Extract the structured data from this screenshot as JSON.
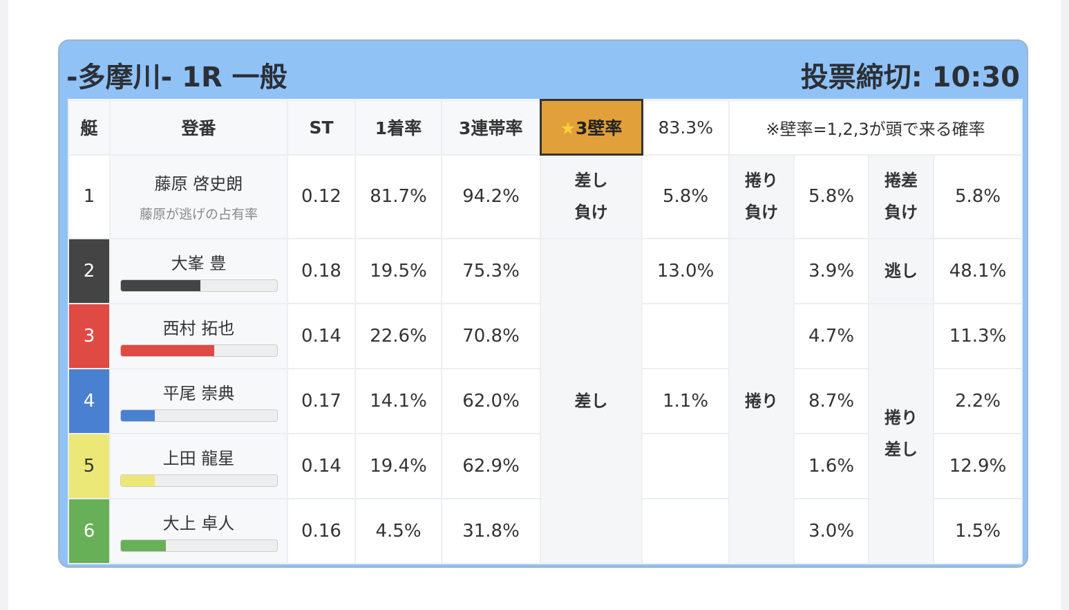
{
  "header": {
    "title": "-多摩川- 1R 一般",
    "deadline": "投票締切: 10:30"
  },
  "columns": {
    "boat": "艇",
    "name": "登番",
    "st": "ST",
    "win": "1着率",
    "top3": "3連帯率",
    "wall": "★3壁率",
    "wall_value": "83.3%",
    "note": "※壁率=1,2,3が頭で来る確率"
  },
  "rows": [
    {
      "boat": "1",
      "name": "藤原 啓史朗",
      "sub": "藤原が逃げの占有率",
      "st": "0.12",
      "win": "81.7%",
      "top3": "94.2%",
      "color": "#ffffff"
    },
    {
      "boat": "2",
      "name": "大峯 豊",
      "st": "0.18",
      "win": "19.5%",
      "top3": "75.3%",
      "color": "#444444",
      "bar": 0.51
    },
    {
      "boat": "3",
      "name": "西村 拓也",
      "st": "0.14",
      "win": "22.6%",
      "top3": "70.8%",
      "color": "#e04a45",
      "bar": 0.6
    },
    {
      "boat": "4",
      "name": "平尾 崇典",
      "st": "0.17",
      "win": "14.1%",
      "top3": "62.0%",
      "color": "#4a80d0",
      "bar": 0.22
    },
    {
      "boat": "5",
      "name": "上田 龍星",
      "st": "0.14",
      "win": "19.4%",
      "top3": "62.9%",
      "color": "#ece878",
      "bar": 0.22
    },
    {
      "boat": "6",
      "name": "大上 卓人",
      "st": "0.16",
      "win": "4.5%",
      "top3": "31.8%",
      "color": "#68b058",
      "bar": 0.29
    }
  ],
  "kimarite": {
    "sashi_make": "差し負け",
    "sashi_make_val": "5.8%",
    "makuri_make": "捲り負け",
    "makuri_make_val": "5.8%",
    "makurisashi_make": "捲差負け",
    "makurisashi_make_val": "5.8%",
    "sashi": "差し",
    "makuri": "捲り",
    "nige": "逃し",
    "makurisashi": "捲り差し",
    "sashi_vals": [
      "13.0%",
      "",
      "1.1%",
      "",
      ""
    ],
    "makuri_vals": [
      "3.9%",
      "4.7%",
      "8.7%",
      "1.6%",
      "3.0%"
    ],
    "last_vals": [
      "48.1%",
      "11.3%",
      "2.2%",
      "12.9%",
      "1.5%"
    ]
  }
}
